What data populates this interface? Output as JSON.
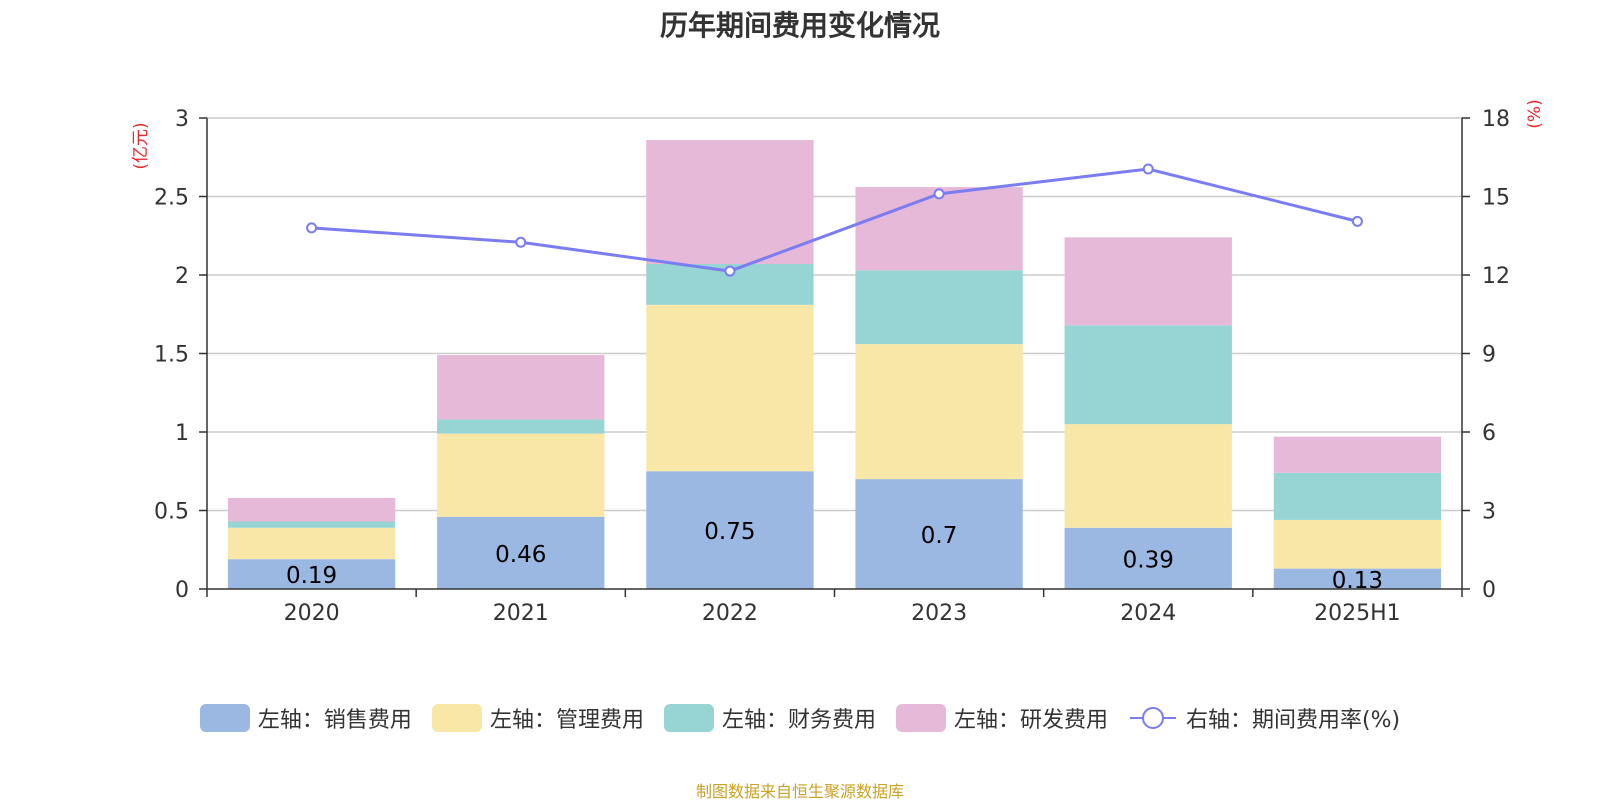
{
  "title": "历年期间费用变化情况",
  "source_note": "制图数据来自恒生聚源数据库",
  "legend": [
    {
      "label": "左轴：销售费用",
      "color": "#9bb8e2",
      "kind": "bar"
    },
    {
      "label": "左轴：管理费用",
      "color": "#f8e7a7",
      "kind": "bar"
    },
    {
      "label": "左轴：财务费用",
      "color": "#97d4d4",
      "kind": "bar"
    },
    {
      "label": "左轴：研发费用",
      "color": "#e7b9d9",
      "kind": "bar"
    },
    {
      "label": "右轴：期间费用率(%)",
      "color": "#7a7cf0",
      "kind": "line"
    }
  ],
  "chart_data": {
    "type": "bar",
    "stacked": true,
    "categories": [
      "2020",
      "2021",
      "2022",
      "2023",
      "2024",
      "2025H1"
    ],
    "y_left": {
      "label": "(亿元)",
      "ylim": [
        0,
        3
      ],
      "ticks": [
        "0",
        "0.5",
        "1",
        "1.5",
        "2",
        "2.5",
        "3"
      ]
    },
    "y_right": {
      "label": "(%)",
      "ylim": [
        0,
        18
      ],
      "ticks": [
        "0",
        "3",
        "6",
        "9",
        "12",
        "15",
        "18"
      ]
    },
    "series": [
      {
        "name": "左轴：销售费用",
        "axis": "left",
        "color": "#9bb8e2",
        "values": [
          0.19,
          0.46,
          0.75,
          0.7,
          0.39,
          0.13
        ],
        "labels": [
          "0.19",
          "0.46",
          "0.75",
          "0.7",
          "0.39",
          "0.13"
        ]
      },
      {
        "name": "左轴：管理费用",
        "axis": "left",
        "color": "#f8e7a7",
        "values": [
          0.2,
          0.53,
          1.06,
          0.86,
          0.66,
          0.31
        ]
      },
      {
        "name": "左轴：财务费用",
        "axis": "left",
        "color": "#97d4d4",
        "values": [
          0.04,
          0.09,
          0.26,
          0.47,
          0.63,
          0.3
        ]
      },
      {
        "name": "左轴：研发费用",
        "axis": "left",
        "color": "#e7b9d9",
        "values": [
          0.15,
          0.41,
          0.79,
          0.53,
          0.56,
          0.23
        ]
      },
      {
        "name": "右轴：期间费用率(%)",
        "axis": "right",
        "type": "line",
        "color": "#7a7cf0",
        "values": [
          13.8,
          13.25,
          12.15,
          15.1,
          16.05,
          14.05
        ]
      }
    ],
    "grid": true,
    "legend_position": "bottom"
  }
}
